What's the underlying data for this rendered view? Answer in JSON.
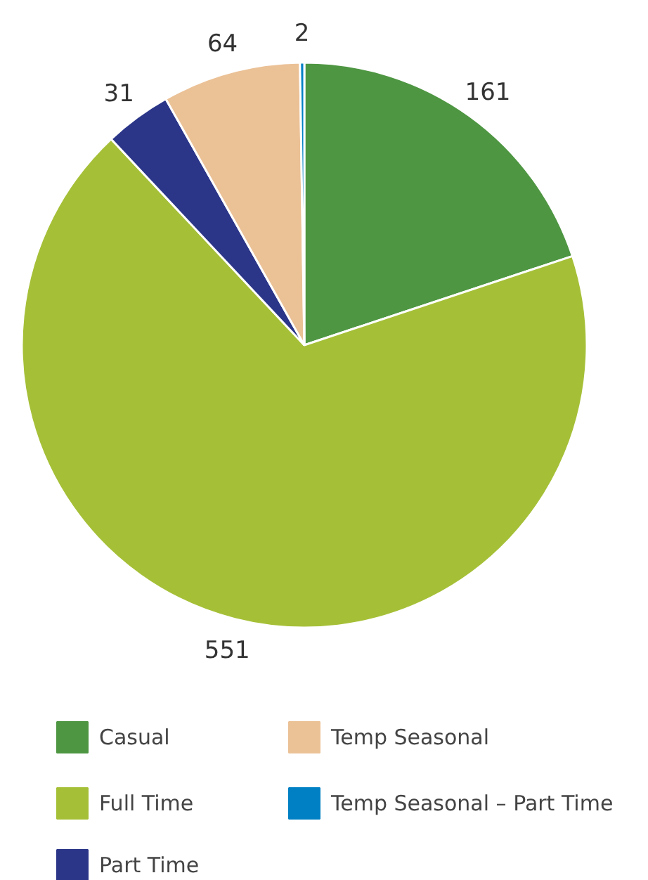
{
  "chart_data": {
    "type": "pie",
    "categories": [
      "Casual",
      "Full Time",
      "Part Time",
      "Temp Seasonal",
      "Temp Seasonal – Part Time"
    ],
    "values": [
      161,
      551,
      31,
      64,
      2
    ],
    "colors": [
      "#4e9642",
      "#a5c037",
      "#2b3689",
      "#ebc196",
      "#0080c4"
    ],
    "data_labels": true,
    "legend": "bottom"
  }
}
